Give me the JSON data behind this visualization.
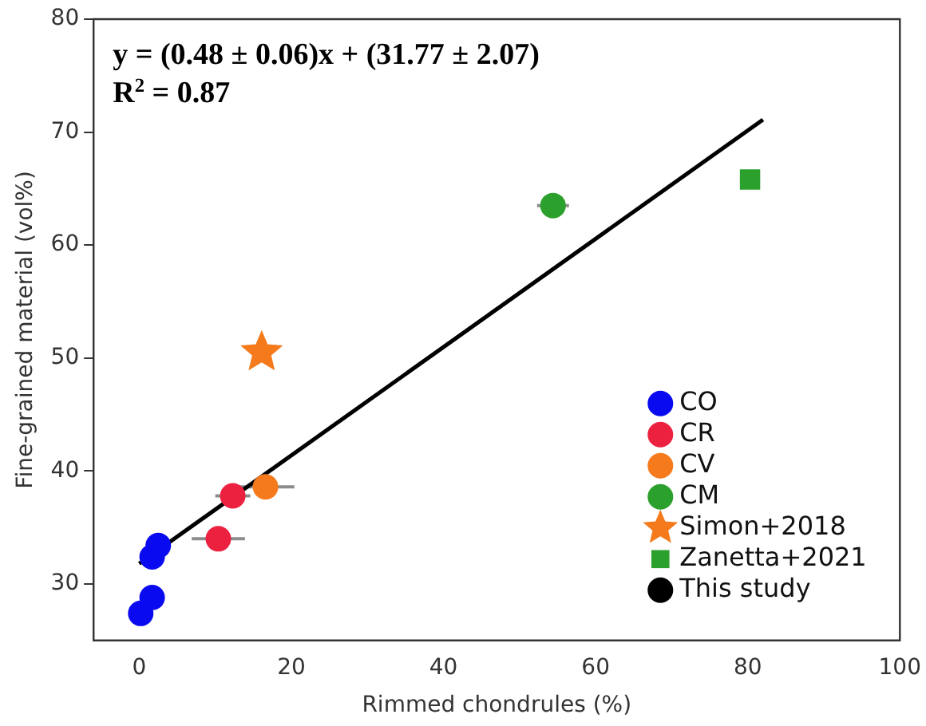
{
  "chart_data": {
    "type": "scatter",
    "xlabel": "Rimmed chondrules (%)",
    "ylabel": "Fine-grained material (vol%)",
    "xlim": [
      -6,
      100
    ],
    "xticks": [
      0,
      20,
      40,
      60,
      80,
      100
    ],
    "ylim": [
      25,
      80
    ],
    "yticks": [
      30,
      40,
      50,
      60,
      70,
      80
    ],
    "grid": false,
    "legend": "bottom right",
    "marker": "circle",
    "annotations": [
      "y = (0.48 ± 0.06)x + (31.77 ± 2.07)",
      "R$^{2}$ = 0.87",
      "This study"
    ],
    "series": [
      {
        "name": "CO",
        "color": "#0a0af0",
        "x": [
          2.5,
          1.7,
          1.7,
          0.2
        ],
        "values": [
          33.4,
          32.4,
          28.8,
          27.4
        ]
      },
      {
        "name": "CR",
        "color": "#ec2140",
        "x": [
          12.3,
          10.4
        ],
        "values": [
          37.8,
          34.0
        ],
        "xerrors": [
          2.3,
          3.5
        ]
      },
      {
        "name": "CV",
        "color": "#f57a1c",
        "x": [
          16.6
        ],
        "values": [
          38.6
        ],
        "xerrors": [
          3.8
        ]
      },
      {
        "name": "CM",
        "color": "#2ca02c",
        "x": [
          54.4
        ],
        "values": [
          63.5
        ],
        "xerrors": [
          2.1
        ]
      },
      {
        "name": "Simon+2018",
        "color": "#f57a1c",
        "marker": "star",
        "x": [
          16.1
        ],
        "values": [
          50.5
        ]
      },
      {
        "name": "Zanetta+2021",
        "color": "#2ca02c",
        "marker": "square",
        "x": [
          80.3
        ],
        "values": [
          65.8
        ]
      },
      {
        "type": "line",
        "color": "#000000",
        "marker": "none",
        "x": [
          0,
          82
        ],
        "values": [
          31.8,
          71.1
        ]
      }
    ]
  }
}
